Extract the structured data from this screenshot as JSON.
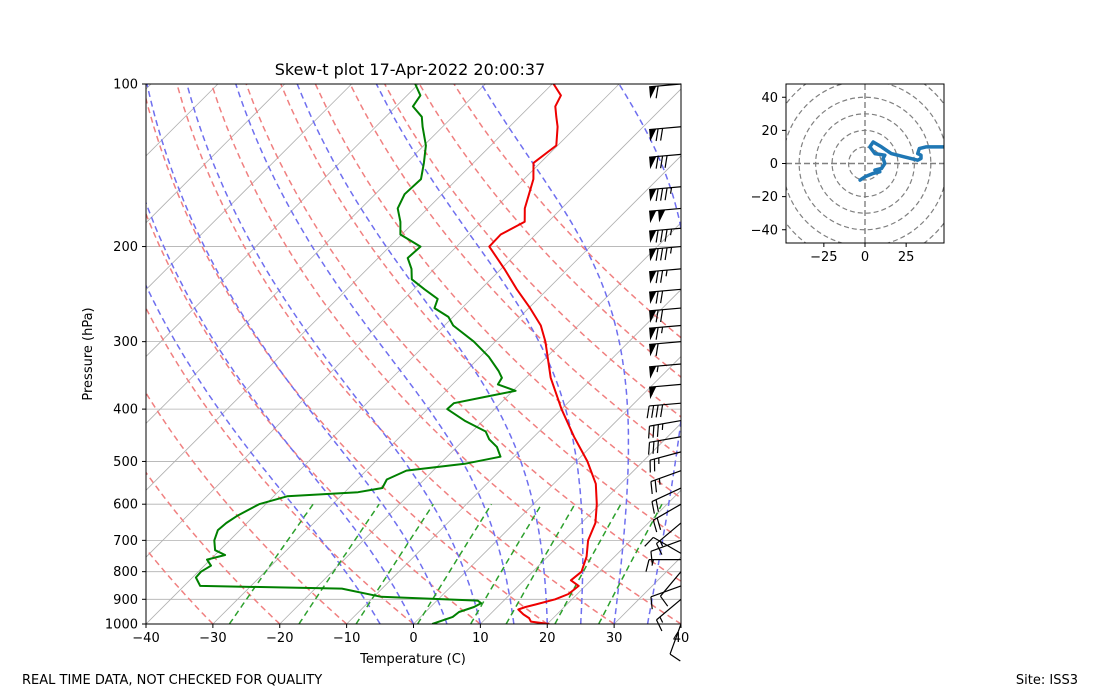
{
  "chart_data": [
    {
      "type": "line",
      "chart_kind": "skew-t log-p diagram",
      "title": "Skew-t plot 17-Apr-2022 20:00:37",
      "xlabel": "Temperature (C)",
      "ylabel": "Pressure (hPa)",
      "xlim": [
        -40,
        40
      ],
      "ylim": [
        1000,
        100
      ],
      "y_scale": "log",
      "x_ticks": [
        -40,
        -30,
        -20,
        -10,
        0,
        10,
        20,
        30,
        40
      ],
      "y_ticks": [
        1000,
        900,
        800,
        700,
        600,
        500,
        400,
        300,
        200,
        100
      ],
      "grid": true,
      "skew_degrees": 45,
      "reference_lines": {
        "dry_adiabats_theta_c": [
          -30,
          -20,
          -10,
          0,
          10,
          20,
          30,
          40,
          50,
          60,
          70,
          80,
          90,
          100,
          110
        ],
        "moist_adiabats_start_c": [
          -5,
          0,
          5,
          10,
          15,
          20,
          25,
          30,
          35
        ],
        "mixing_ratio_lines_gkg": [
          0.4,
          1,
          2,
          4,
          7,
          10,
          16,
          24
        ],
        "colors": {
          "dry": "#f08080",
          "moist": "#6f6fef",
          "mixing": "#2ca02c",
          "isotherm": "#b0b0b0"
        }
      },
      "series": [
        {
          "color": "#ee0000",
          "points": [
            [
              1000,
              20.3
            ],
            [
              990,
              17.2
            ],
            [
              975,
              16.4
            ],
            [
              960,
              15.0
            ],
            [
              940,
              13.5
            ],
            [
              930,
              14.2
            ],
            [
              920,
              15.4
            ],
            [
              900,
              17.5
            ],
            [
              880,
              18.7
            ],
            [
              850,
              19.0
            ],
            [
              830,
              17.0
            ],
            [
              800,
              17.3
            ],
            [
              750,
              15.8
            ],
            [
              700,
              13.6
            ],
            [
              650,
              12.1
            ],
            [
              600,
              9.5
            ],
            [
              550,
              6.3
            ],
            [
              500,
              1.7
            ],
            [
              450,
              -4.0
            ],
            [
              400,
              -10.0
            ],
            [
              350,
              -16.3
            ],
            [
              300,
              -22.5
            ],
            [
              280,
              -25.6
            ],
            [
              260,
              -29.8
            ],
            [
              240,
              -34.6
            ],
            [
              220,
              -39.5
            ],
            [
              200,
              -45.1
            ],
            [
              190,
              -45.2
            ],
            [
              180,
              -43.5
            ],
            [
              170,
              -45.5
            ],
            [
              160,
              -47.0
            ],
            [
              150,
              -48.6
            ],
            [
              140,
              -51.0
            ],
            [
              130,
              -50.2
            ],
            [
              120,
              -52.8
            ],
            [
              115,
              -54.5
            ],
            [
              110,
              -56.2
            ],
            [
              105,
              -57.0
            ],
            [
              100,
              -59.8
            ]
          ]
        },
        {
          "color": "#008000",
          "points": [
            [
              1000,
              2.8
            ],
            [
              970,
              4.8
            ],
            [
              950,
              5.0
            ],
            [
              930,
              6.5
            ],
            [
              915,
              7.0
            ],
            [
              905,
              6.1
            ],
            [
              890,
              -9.0
            ],
            [
              860,
              -16.0
            ],
            [
              850,
              -37.6
            ],
            [
              820,
              -39.5
            ],
            [
              800,
              -39.6
            ],
            [
              780,
              -39.0
            ],
            [
              760,
              -40.5
            ],
            [
              745,
              -38.5
            ],
            [
              730,
              -40.7
            ],
            [
              700,
              -42.3
            ],
            [
              670,
              -43.3
            ],
            [
              650,
              -43.1
            ],
            [
              630,
              -42.5
            ],
            [
              600,
              -41.0
            ],
            [
              580,
              -38.0
            ],
            [
              570,
              -28.0
            ],
            [
              560,
              -25.0
            ],
            [
              540,
              -25.6
            ],
            [
              520,
              -24.0
            ],
            [
              505,
              -16.3
            ],
            [
              490,
              -12.0
            ],
            [
              470,
              -14.0
            ],
            [
              455,
              -16.3
            ],
            [
              440,
              -18.0
            ],
            [
              420,
              -22.8
            ],
            [
              400,
              -27.1
            ],
            [
              390,
              -27.0
            ],
            [
              380,
              -23.4
            ],
            [
              370,
              -19.6
            ],
            [
              360,
              -23.2
            ],
            [
              350,
              -23.6
            ],
            [
              340,
              -25.1
            ],
            [
              320,
              -28.7
            ],
            [
              300,
              -33.2
            ],
            [
              280,
              -38.7
            ],
            [
              270,
              -40.7
            ],
            [
              260,
              -44.1
            ],
            [
              250,
              -45.0
            ],
            [
              240,
              -48.4
            ],
            [
              230,
              -51.8
            ],
            [
              220,
              -53.4
            ],
            [
              210,
              -55.6
            ],
            [
              200,
              -55.4
            ],
            [
              190,
              -60.2
            ],
            [
              180,
              -62.1
            ],
            [
              170,
              -64.5
            ],
            [
              160,
              -65.6
            ],
            [
              150,
              -65.4
            ],
            [
              140,
              -67.4
            ],
            [
              130,
              -69.7
            ],
            [
              120,
              -73.0
            ],
            [
              115,
              -74.6
            ],
            [
              110,
              -77.5
            ],
            [
              105,
              -78.0
            ],
            [
              100,
              -80.5
            ]
          ]
        }
      ],
      "wind_barbs": [
        {
          "p": 1000,
          "speed_kt": 10,
          "dir_deg": 200
        },
        {
          "p": 900,
          "speed_kt": 15,
          "dir_deg": 230
        },
        {
          "p": 850,
          "speed_kt": 10,
          "dir_deg": 250
        },
        {
          "p": 800,
          "speed_kt": 10,
          "dir_deg": 220
        },
        {
          "p": 760,
          "speed_kt": 15,
          "dir_deg": 270
        },
        {
          "p": 740,
          "speed_kt": 10,
          "dir_deg": 300
        },
        {
          "p": 700,
          "speed_kt": 10,
          "dir_deg": 250
        },
        {
          "p": 650,
          "speed_kt": 15,
          "dir_deg": 230
        },
        {
          "p": 600,
          "speed_kt": 20,
          "dir_deg": 240
        },
        {
          "p": 560,
          "speed_kt": 20,
          "dir_deg": 245
        },
        {
          "p": 520,
          "speed_kt": 25,
          "dir_deg": 250
        },
        {
          "p": 480,
          "speed_kt": 25,
          "dir_deg": 255
        },
        {
          "p": 450,
          "speed_kt": 30,
          "dir_deg": 260
        },
        {
          "p": 420,
          "speed_kt": 35,
          "dir_deg": 260
        },
        {
          "p": 390,
          "speed_kt": 40,
          "dir_deg": 265
        },
        {
          "p": 360,
          "speed_kt": 50,
          "dir_deg": 265
        },
        {
          "p": 330,
          "speed_kt": 55,
          "dir_deg": 265
        },
        {
          "p": 300,
          "speed_kt": 60,
          "dir_deg": 265
        },
        {
          "p": 280,
          "speed_kt": 65,
          "dir_deg": 265
        },
        {
          "p": 260,
          "speed_kt": 70,
          "dir_deg": 265
        },
        {
          "p": 240,
          "speed_kt": 70,
          "dir_deg": 265
        },
        {
          "p": 220,
          "speed_kt": 75,
          "dir_deg": 265
        },
        {
          "p": 200,
          "speed_kt": 85,
          "dir_deg": 265
        },
        {
          "p": 185,
          "speed_kt": 85,
          "dir_deg": 265
        },
        {
          "p": 170,
          "speed_kt": 100,
          "dir_deg": 265
        },
        {
          "p": 155,
          "speed_kt": 85,
          "dir_deg": 265
        },
        {
          "p": 135,
          "speed_kt": 80,
          "dir_deg": 265
        },
        {
          "p": 120,
          "speed_kt": 70,
          "dir_deg": 265
        },
        {
          "p": 100,
          "speed_kt": 60,
          "dir_deg": 265
        }
      ]
    },
    {
      "type": "line",
      "chart_kind": "hodograph",
      "xlim": [
        -48,
        48
      ],
      "ylim": [
        -48,
        48
      ],
      "x_ticks": [
        -25,
        0,
        25
      ],
      "y_ticks": [
        -40,
        -20,
        0,
        20,
        40
      ],
      "rings": [
        10,
        20,
        30,
        40,
        50,
        60
      ],
      "series": [
        {
          "color": "#1f77b4",
          "points": [
            [
              -3,
              -10
            ],
            [
              0,
              -8
            ],
            [
              5,
              -6
            ],
            [
              9,
              -5
            ],
            [
              6,
              -4
            ],
            [
              10,
              -3
            ],
            [
              12,
              0
            ],
            [
              11,
              3
            ],
            [
              12,
              5
            ],
            [
              6,
              6
            ],
            [
              3,
              10
            ],
            [
              5,
              13
            ],
            [
              10,
              10
            ],
            [
              16,
              6
            ],
            [
              24,
              4
            ],
            [
              32,
              2
            ],
            [
              34,
              3
            ],
            [
              34,
              5
            ],
            [
              32,
              6
            ],
            [
              33,
              9
            ],
            [
              37,
              10
            ],
            [
              43,
              10
            ],
            [
              48,
              10
            ]
          ]
        }
      ]
    }
  ],
  "footer": {
    "left": "REAL TIME DATA, NOT CHECKED FOR QUALITY",
    "right": "Site: ISS3"
  }
}
